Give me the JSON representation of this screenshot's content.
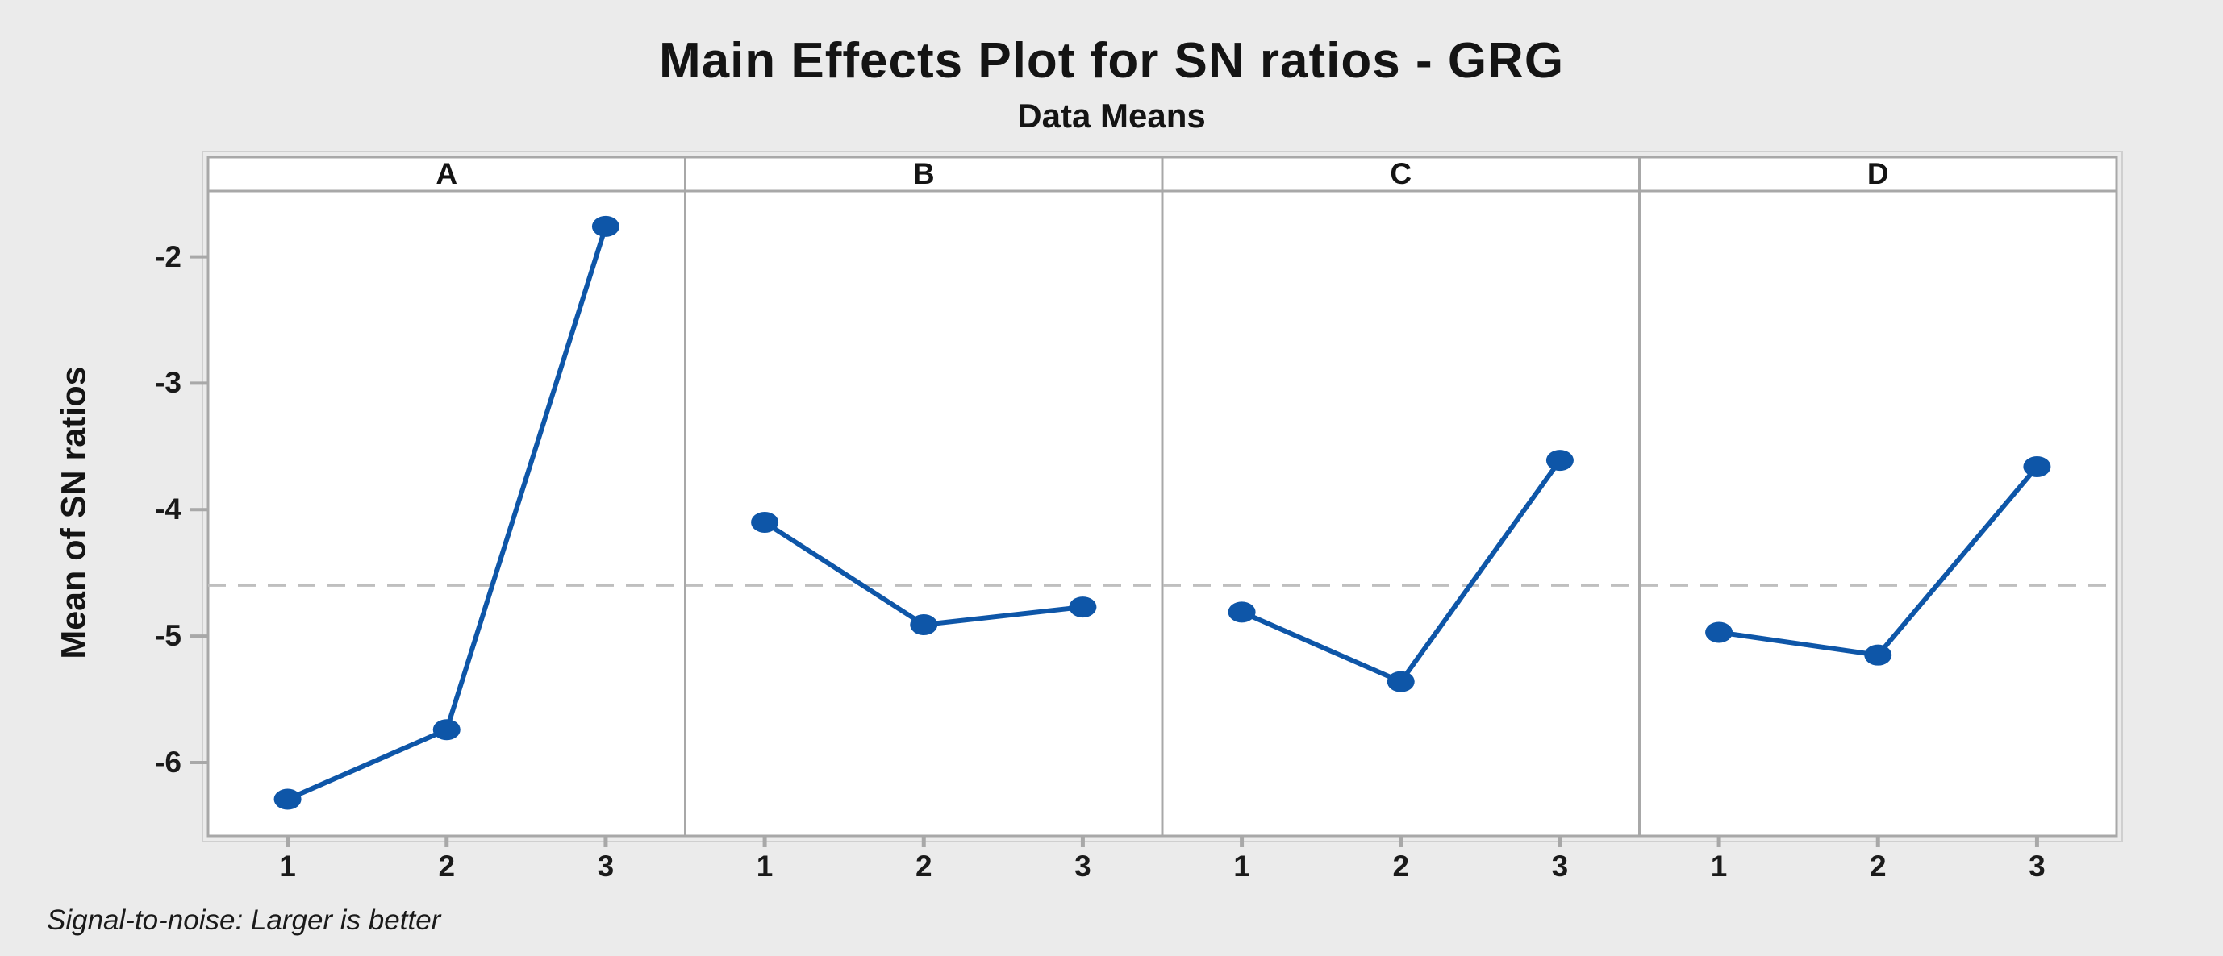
{
  "chart": {
    "title": "Main Effects Plot for SN ratios - GRG",
    "subtitle": "Data Means",
    "ylabel": "Mean of SN ratios",
    "footer": "Signal-to-noise: Larger is better"
  },
  "chart_data": {
    "type": "line",
    "title": "Main Effects Plot for SN ratios - GRG",
    "subtitle": "Data Means",
    "ylabel": "Mean of SN ratios",
    "xlabel": "",
    "footer_note": "Signal-to-noise: Larger is better",
    "panels": [
      "A",
      "B",
      "C",
      "D"
    ],
    "x_categories": [
      "1",
      "2",
      "3"
    ],
    "series": [
      {
        "name": "A",
        "values": [
          -6.29,
          -5.74,
          -1.76
        ]
      },
      {
        "name": "B",
        "values": [
          -4.1,
          -4.91,
          -4.77
        ]
      },
      {
        "name": "C",
        "values": [
          -4.81,
          -5.36,
          -3.61
        ]
      },
      {
        "name": "D",
        "values": [
          -4.97,
          -5.15,
          -3.66
        ]
      }
    ],
    "reference_line": -4.6,
    "y_ticks": [
      -2,
      -3,
      -4,
      -5,
      -6
    ],
    "ylim": [
      -6.58,
      -1.48
    ],
    "grid": false,
    "legend": "none",
    "colors": {
      "line": "#0E56A8",
      "marker": "#0E56A8",
      "reference_line": "#BFBFBF",
      "panel_border": "#A8A8A8",
      "outer_frame": "#CFCFCF",
      "tick": "#A8A8A8",
      "background": "#EBEBEB",
      "plot_background": "#FFFFFF",
      "text": "#1a1a1a"
    }
  }
}
